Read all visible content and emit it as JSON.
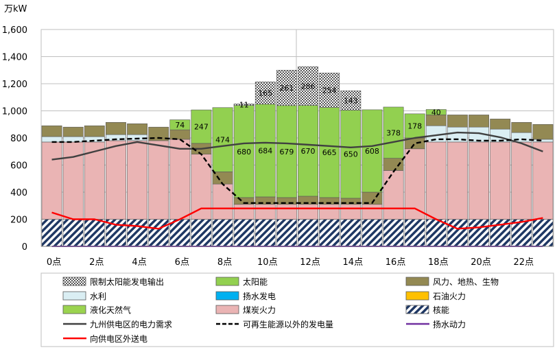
{
  "chart_data": {
    "type": "bar",
    "unit": "万kW",
    "ylim": [
      0,
      1600
    ],
    "y_ticks": [
      "0",
      "200",
      "400",
      "600",
      "800",
      "1,000",
      "1,200",
      "1,400",
      "1,600"
    ],
    "x_tick_labels": [
      "0点",
      "2点",
      "4点",
      "6点",
      "8点",
      "10点",
      "12点",
      "14点",
      "16点",
      "18点",
      "20点",
      "22点"
    ],
    "grid": true,
    "legend_placement": "bottom",
    "hours": [
      0,
      1,
      2,
      3,
      4,
      5,
      6,
      7,
      8,
      9,
      10,
      11,
      12,
      13,
      14,
      15,
      16,
      17,
      18,
      19,
      20,
      21,
      22,
      23
    ],
    "stack_order": [
      "nuclear",
      "coal",
      "lng",
      "oil",
      "pumped_gen",
      "hydro",
      "wind_geo_bio",
      "solar",
      "solar_curtail"
    ],
    "series": [
      {
        "key": "nuclear",
        "name": "核能",
        "color": "#1f3864",
        "values": [
          200,
          200,
          200,
          200,
          200,
          200,
          200,
          200,
          200,
          200,
          200,
          200,
          200,
          200,
          200,
          200,
          200,
          200,
          200,
          200,
          200,
          200,
          200,
          200
        ]
      },
      {
        "key": "coal",
        "name": "煤炭火力",
        "color": "#eab4b4",
        "values": [
          570,
          570,
          570,
          580,
          580,
          580,
          590,
          480,
          260,
          110,
          110,
          110,
          110,
          110,
          110,
          110,
          360,
          520,
          570,
          570,
          570,
          570,
          570,
          570
        ]
      },
      {
        "key": "lng",
        "name": "液化天然气",
        "color": "#9bd34f",
        "values": [
          0,
          0,
          0,
          0,
          0,
          0,
          0,
          0,
          0,
          0,
          0,
          0,
          0,
          0,
          0,
          0,
          0,
          0,
          0,
          0,
          0,
          0,
          0,
          0
        ]
      },
      {
        "key": "oil",
        "name": "石油火力",
        "color": "#ffc000",
        "values": [
          0,
          0,
          0,
          0,
          0,
          0,
          0,
          0,
          0,
          0,
          0,
          0,
          0,
          0,
          0,
          0,
          0,
          0,
          0,
          0,
          0,
          0,
          0,
          0
        ]
      },
      {
        "key": "pumped_gen",
        "name": "扬水发电",
        "color": "#00b0f0",
        "values": [
          0,
          0,
          0,
          0,
          0,
          0,
          0,
          0,
          0,
          0,
          0,
          0,
          0,
          0,
          0,
          0,
          0,
          0,
          0,
          0,
          0,
          0,
          0,
          0
        ]
      },
      {
        "key": "hydro",
        "name": "水利",
        "color": "#daeef3",
        "values": [
          40,
          40,
          40,
          45,
          45,
          0,
          0,
          0,
          0,
          0,
          0,
          0,
          0,
          0,
          0,
          0,
          0,
          0,
          120,
          110,
          110,
          95,
          70,
          20
        ]
      },
      {
        "key": "wind_geo_bio",
        "name": "风力、地热、生物",
        "color": "#938953",
        "values": [
          80,
          70,
          80,
          90,
          80,
          100,
          70,
          80,
          90,
          50,
          55,
          50,
          60,
          50,
          45,
          90,
          90,
          80,
          80,
          90,
          90,
          75,
          75,
          110
        ]
      },
      {
        "key": "solar",
        "name": "太阳能",
        "color": "#92d050",
        "values": [
          0,
          0,
          0,
          0,
          0,
          0,
          74,
          247,
          474,
          680,
          684,
          679,
          670,
          665,
          650,
          608,
          378,
          178,
          40,
          0,
          0,
          0,
          0,
          0
        ]
      },
      {
        "key": "solar_curtail",
        "name": "限制太阳能发电输出",
        "color": "#bfbfbf",
        "values": [
          0,
          0,
          0,
          0,
          0,
          0,
          0,
          0,
          0,
          11,
          165,
          261,
          286,
          254,
          143,
          0,
          0,
          0,
          0,
          0,
          0,
          0,
          0,
          0
        ]
      }
    ],
    "data_labels": [
      {
        "series": "solar",
        "hour": 6,
        "text": "74"
      },
      {
        "series": "solar",
        "hour": 7,
        "text": "247"
      },
      {
        "series": "solar",
        "hour": 8,
        "text": "474"
      },
      {
        "series": "solar",
        "hour": 9,
        "text": "680"
      },
      {
        "series": "solar",
        "hour": 10,
        "text": "684"
      },
      {
        "series": "solar",
        "hour": 11,
        "text": "679"
      },
      {
        "series": "solar",
        "hour": 12,
        "text": "670"
      },
      {
        "series": "solar",
        "hour": 13,
        "text": "665"
      },
      {
        "series": "solar",
        "hour": 14,
        "text": "650"
      },
      {
        "series": "solar",
        "hour": 15,
        "text": "608"
      },
      {
        "series": "solar",
        "hour": 16,
        "text": "378"
      },
      {
        "series": "solar",
        "hour": 17,
        "text": "178"
      },
      {
        "series": "solar",
        "hour": 18,
        "text": "40"
      },
      {
        "series": "solar_curtail",
        "hour": 9,
        "text": "11"
      },
      {
        "series": "solar_curtail",
        "hour": 10,
        "text": "165"
      },
      {
        "series": "solar_curtail",
        "hour": 11,
        "text": "261"
      },
      {
        "series": "solar_curtail",
        "hour": 12,
        "text": "286"
      },
      {
        "series": "solar_curtail",
        "hour": 13,
        "text": "254"
      },
      {
        "series": "solar_curtail",
        "hour": 14,
        "text": "143"
      }
    ],
    "lines": [
      {
        "key": "demand",
        "name": "九州供电区的电力需求",
        "color": "#404040",
        "style": "solid",
        "values": [
          640,
          660,
          700,
          740,
          770,
          745,
          720,
          720,
          740,
          760,
          765,
          760,
          750,
          740,
          730,
          740,
          770,
          800,
          820,
          840,
          835,
          805,
          760,
          700
        ]
      },
      {
        "key": "non_renewable",
        "name": "可再生能源以外的发电量",
        "color": "#000000",
        "style": "dashed",
        "values": [
          770,
          770,
          780,
          790,
          795,
          800,
          790,
          680,
          460,
          320,
          320,
          320,
          320,
          320,
          320,
          320,
          550,
          760,
          790,
          790,
          780,
          780,
          790,
          780
        ]
      },
      {
        "key": "pumping",
        "name": "扬水动力",
        "color": "#7030a0",
        "style": "solid",
        "values": [
          0,
          0,
          0,
          0,
          0,
          0,
          0,
          0,
          0,
          0,
          0,
          0,
          0,
          0,
          0,
          0,
          0,
          0,
          0,
          0,
          0,
          0,
          0,
          0
        ]
      },
      {
        "key": "transmission",
        "name": "向供电区外送电",
        "color": "#ff0000",
        "style": "solid",
        "values": [
          250,
          200,
          200,
          160,
          150,
          130,
          200,
          280,
          280,
          280,
          280,
          280,
          280,
          280,
          280,
          280,
          280,
          280,
          200,
          130,
          140,
          160,
          180,
          210
        ]
      }
    ],
    "legend_layout": [
      [
        "solar_curtail",
        "solar",
        "wind_geo_bio"
      ],
      [
        "hydro",
        "pumped_gen",
        "oil"
      ],
      [
        "lng",
        "coal",
        "nuclear"
      ],
      [
        "demand",
        "non_renewable",
        "pumping"
      ],
      [
        "transmission"
      ]
    ]
  }
}
